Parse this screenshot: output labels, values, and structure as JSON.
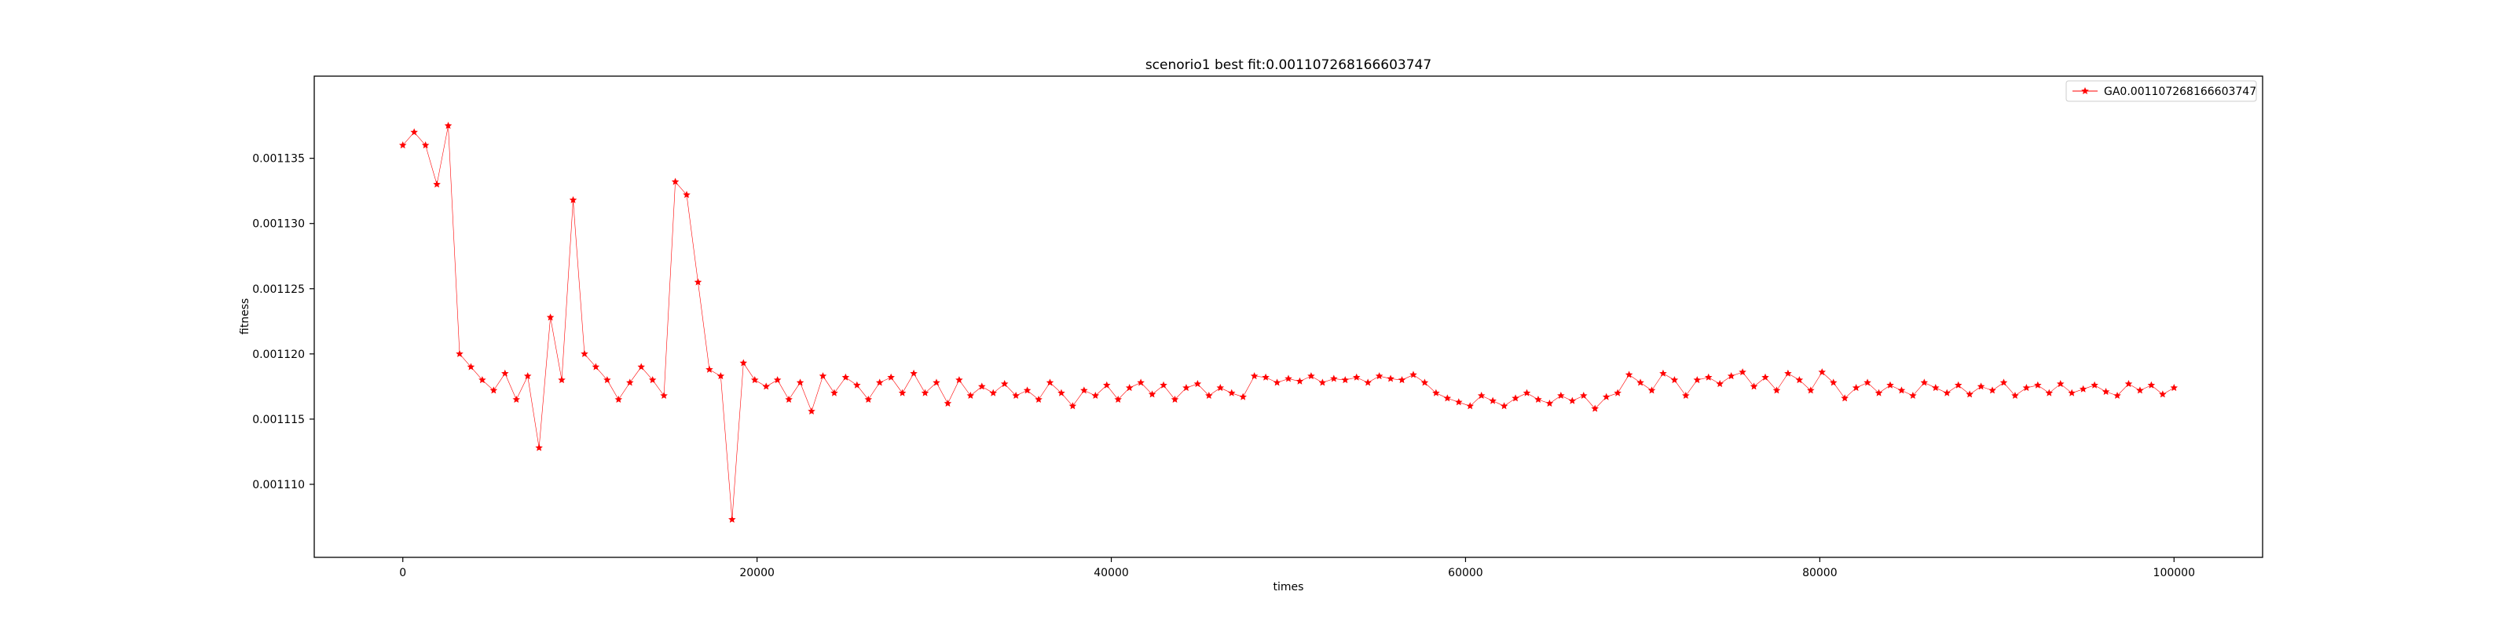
{
  "chart_data": {
    "type": "line",
    "title": "scenorio1 best fit:0.001107268166603747",
    "xlabel": "times",
    "ylabel": "fitness",
    "xlim": [
      -5000,
      105000
    ],
    "ylim": [
      0.0011044,
      0.0011413
    ],
    "xticks": [
      0,
      20000,
      40000,
      60000,
      80000,
      100000
    ],
    "xtick_labels": [
      "0",
      "20000",
      "40000",
      "60000",
      "80000",
      "100000"
    ],
    "yticks": [
      0.00111,
      0.001115,
      0.00112,
      0.001125,
      0.00113,
      0.001135
    ],
    "ytick_labels": [
      "0.001110",
      "0.001115",
      "0.001120",
      "0.001125",
      "0.001130",
      "0.001135"
    ],
    "grid": false,
    "legend_position": "top-right",
    "series": [
      {
        "name": "GA0.001107268166603747",
        "color": "#ff0000",
        "marker": "star",
        "x_start": 0,
        "x_step": 100,
        "values": [
          0.001136,
          0.001137,
          0.001136,
          0.001133,
          0.0011375,
          0.00112,
          0.001119,
          0.001118,
          0.0011172,
          0.0011185,
          0.0011165,
          0.0011183,
          0.0011128,
          0.0011228,
          0.001118,
          0.0011318,
          0.00112,
          0.001119,
          0.001118,
          0.0011165,
          0.0011178,
          0.001119,
          0.001118,
          0.0011168,
          0.0011332,
          0.0011322,
          0.0011255,
          0.0011188,
          0.0011183,
          0.0011073,
          0.0011193,
          0.001118,
          0.0011175,
          0.001118,
          0.0011165,
          0.0011178,
          0.0011156,
          0.0011183,
          0.001117,
          0.0011182,
          0.0011176,
          0.0011165,
          0.0011178,
          0.0011182,
          0.001117,
          0.0011185,
          0.001117,
          0.0011178,
          0.0011162,
          0.001118,
          0.0011168,
          0.0011175,
          0.001117,
          0.0011177,
          0.0011168,
          0.0011172,
          0.0011165,
          0.0011178,
          0.001117,
          0.001116,
          0.0011172,
          0.0011168,
          0.0011176,
          0.0011165,
          0.0011174,
          0.0011178,
          0.0011169,
          0.0011176,
          0.0011165,
          0.0011174,
          0.0011177,
          0.0011168,
          0.0011174,
          0.001117,
          0.0011167,
          0.0011183,
          0.0011182,
          0.0011178,
          0.0011181,
          0.0011179,
          0.0011183,
          0.0011178,
          0.0011181,
          0.001118,
          0.0011182,
          0.0011178,
          0.0011183,
          0.0011181,
          0.001118,
          0.0011184,
          0.0011178,
          0.001117,
          0.0011166,
          0.0011163,
          0.001116,
          0.0011168,
          0.0011164,
          0.001116,
          0.0011166,
          0.001117,
          0.0011165,
          0.0011162,
          0.0011168,
          0.0011164,
          0.0011168,
          0.0011158,
          0.0011167,
          0.001117,
          0.0011184,
          0.0011178,
          0.0011172,
          0.0011185,
          0.001118,
          0.0011168,
          0.001118,
          0.0011182,
          0.0011177,
          0.0011183,
          0.0011186,
          0.0011175,
          0.0011182,
          0.0011172,
          0.0011185,
          0.001118,
          0.0011172,
          0.0011186,
          0.0011178,
          0.0011166,
          0.0011174,
          0.0011178,
          0.001117,
          0.0011176,
          0.0011172,
          0.0011168,
          0.0011178,
          0.0011174,
          0.001117,
          0.0011176,
          0.0011169,
          0.0011175,
          0.0011172,
          0.0011178,
          0.0011168,
          0.0011174,
          0.0011176,
          0.001117,
          0.0011177,
          0.001117,
          0.0011173,
          0.0011176,
          0.0011171,
          0.0011168,
          0.0011177,
          0.0011172,
          0.0011176,
          0.0011169,
          0.0011174
        ]
      }
    ]
  }
}
